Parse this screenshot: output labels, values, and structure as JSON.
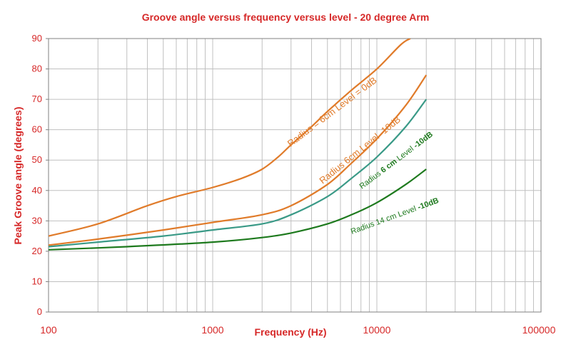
{
  "chart_data": {
    "type": "line",
    "title": "Groove angle versus frequency versus level - 20 degree Arm",
    "xlabel": "Frequency (Hz)",
    "ylabel": "Peak Groove angle (degrees)",
    "xscale": "log",
    "xlim": [
      100,
      100000
    ],
    "ylim": [
      0,
      90
    ],
    "x_ticks": [
      "100",
      "1000",
      "10000",
      "100000"
    ],
    "y_ticks": [
      "0",
      "10",
      "20",
      "30",
      "40",
      "50",
      "60",
      "70",
      "80",
      "90"
    ],
    "grid": true,
    "series": [
      {
        "name": "Radius = 6cm  Level = 0dB",
        "color": "#e07b2a",
        "x": [
          100,
          200,
          400,
          600,
          1000,
          1500,
          2000,
          2500,
          3000,
          4000,
          5000,
          7000,
          10000,
          14000,
          16000
        ],
        "y": [
          25,
          29,
          35,
          38,
          41,
          44,
          47,
          51,
          55,
          61,
          66,
          73,
          80,
          88,
          90
        ]
      },
      {
        "name": "Radius 6cm  Level -10dB",
        "color": "#e07b2a",
        "x": [
          100,
          200,
          500,
          1000,
          2000,
          3000,
          5000,
          7000,
          10000,
          15000,
          20000
        ],
        "y": [
          22,
          24,
          27,
          29.5,
          32,
          35,
          42,
          49,
          57,
          68,
          78
        ]
      },
      {
        "name": "Radius 6 cm Level -10dB",
        "color": "#3a9a87",
        "x": [
          100,
          200,
          500,
          1000,
          2000,
          3000,
          5000,
          7000,
          10000,
          15000,
          20000
        ],
        "y": [
          21.5,
          23,
          25,
          27,
          29,
          32,
          38,
          44,
          51,
          61,
          70
        ]
      },
      {
        "name": "Radius 14 cm  Level -10dB",
        "color": "#1e7a1e",
        "x": [
          100,
          300,
          1000,
          2000,
          3000,
          5000,
          7000,
          10000,
          15000,
          20000
        ],
        "y": [
          20.5,
          21.5,
          23,
          24.5,
          26,
          29,
          32,
          36,
          42,
          47
        ]
      }
    ],
    "annotations": [
      {
        "text": "Radius = 6cm  Level = 0dB",
        "color": "#e07b2a"
      },
      {
        "text": "Radius 6cm  Level -10dB",
        "color": "#e07b2a"
      },
      {
        "pre": "Radius ",
        "bold": "6 cm",
        "mid": " Level ",
        "bold2": "-10dB",
        "color": "#1e7a1e"
      },
      {
        "pre": "Radius 14 cm  Level ",
        "bold": "-10dB",
        "color": "#1e7a1e"
      }
    ]
  }
}
